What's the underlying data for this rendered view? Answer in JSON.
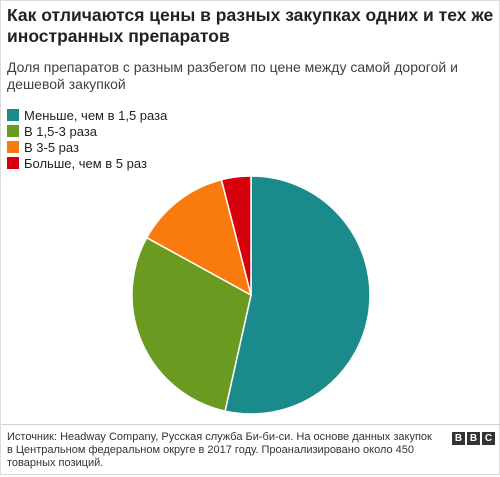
{
  "chart_data": {
    "type": "pie",
    "title": "Как отличаются цены в разных закупках одних и тех же иностранных препаратов",
    "subtitle": "Доля препаратов с разным разбегом по цене между самой дорогой и дешевой закупкой",
    "slices": [
      {
        "label": "Меньше, чем в 1,5 раза",
        "value": 53.5,
        "color": "#1a8a8a"
      },
      {
        "label": "В 1,5-3 раза",
        "value": 29.5,
        "color": "#6a9a1f"
      },
      {
        "label": "В 3-5 раз",
        "value": 13.0,
        "color": "#f97b0f"
      },
      {
        "label": "Больше, чем в 5 раз",
        "value": 4.0,
        "color": "#d6000d"
      }
    ],
    "start_angle_deg": 0,
    "direction": "clockwise",
    "legend_position": "top-left"
  },
  "footer": {
    "source": "Источник: Headway Company, Русская служба Би-би-си. На основе данных закупок в Центральном федеральном округе в 2017 году. Проанализировано около 450 товарных позиций.",
    "logo": [
      "B",
      "B",
      "C"
    ]
  }
}
